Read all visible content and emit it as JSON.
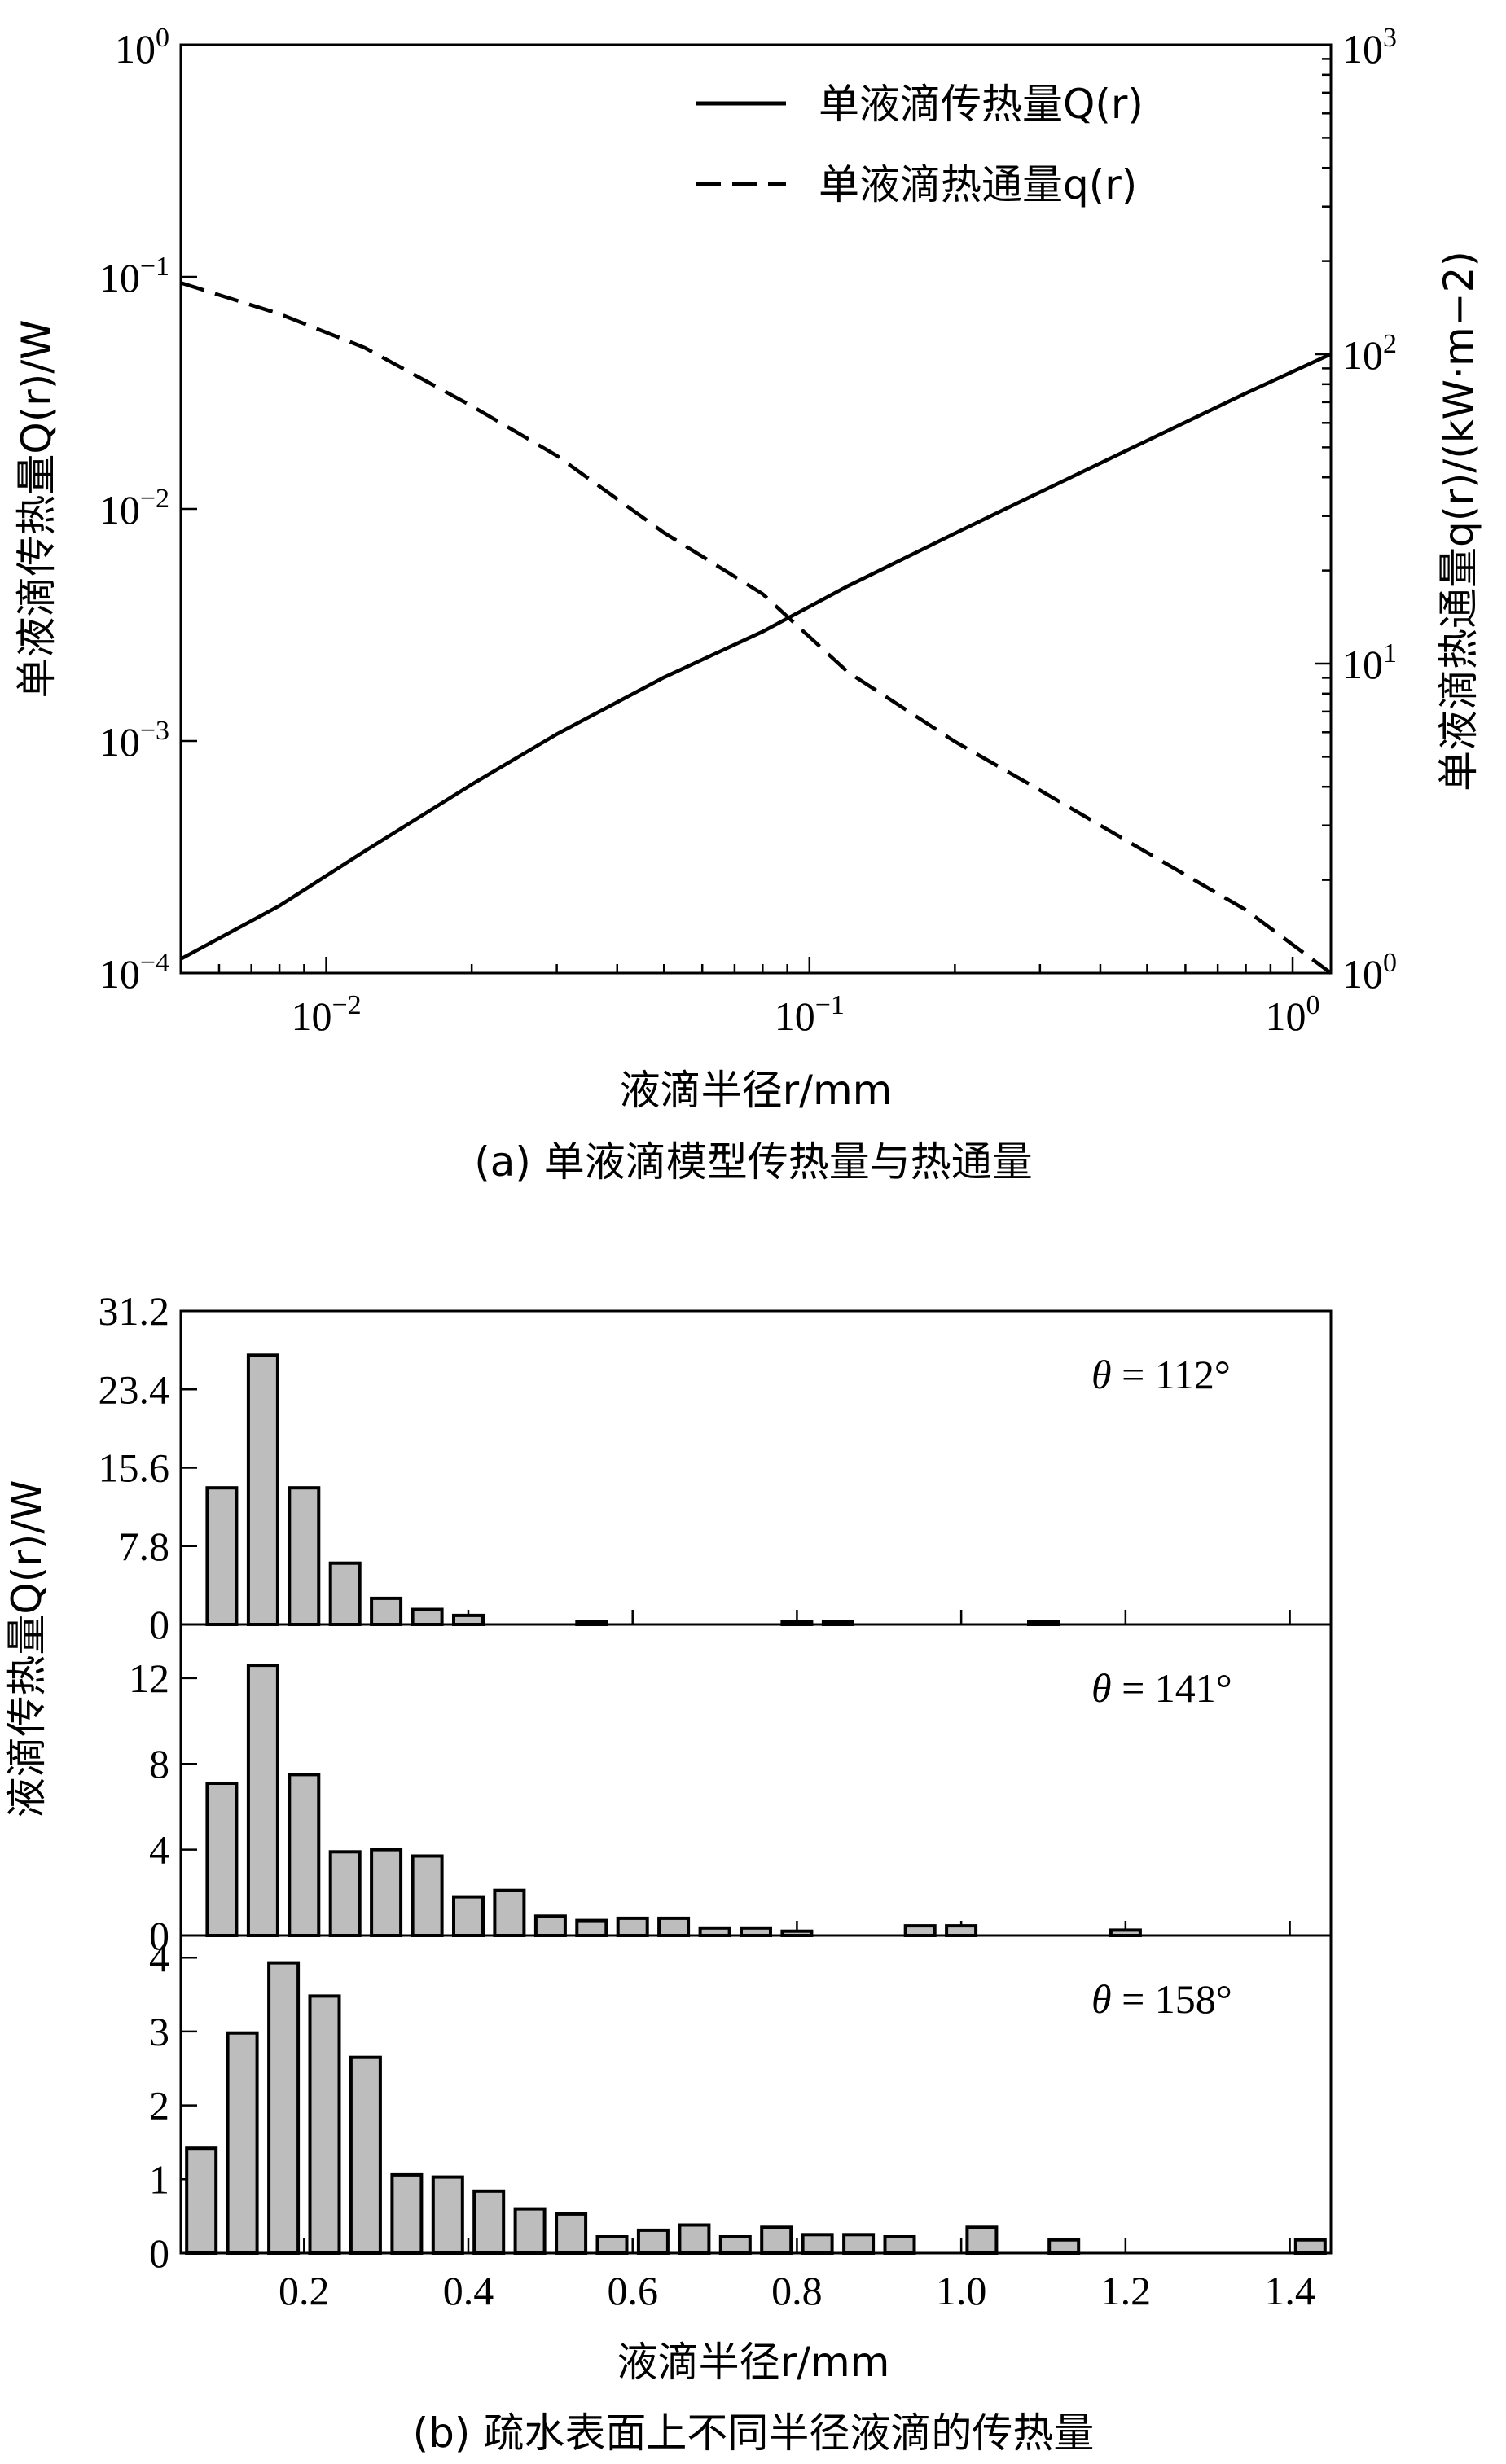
{
  "chart_data": [
    {
      "type": "line",
      "caption": "(a) 单液滴模型传热量与热通量",
      "xlabel": "液滴半径r/mm",
      "xscale": "log",
      "xlim": [
        0.005,
        1.2
      ],
      "x_ticks": [
        {
          "base": "10",
          "exp": "−2"
        },
        {
          "base": "10",
          "exp": "−1"
        },
        {
          "base": "10",
          "exp": "0"
        }
      ],
      "y_left": {
        "label": "单液滴传热量Q(r)/W",
        "scale": "log",
        "lim": [
          0.0001,
          1
        ],
        "ticks": [
          {
            "base": "10",
            "exp": "0"
          },
          {
            "base": "10",
            "exp": "−1"
          },
          {
            "base": "10",
            "exp": "−2"
          },
          {
            "base": "10",
            "exp": "−3"
          },
          {
            "base": "10",
            "exp": "−4"
          }
        ]
      },
      "y_right": {
        "label": "单液滴热通量q(r)/(kW·m−2)",
        "scale": "log",
        "lim": [
          1,
          1000
        ],
        "ticks": [
          {
            "base": "10",
            "exp": "3"
          },
          {
            "base": "10",
            "exp": "2"
          },
          {
            "base": "10",
            "exp": "1"
          },
          {
            "base": "10",
            "exp": "0"
          }
        ]
      },
      "legend_position": "top-right",
      "series": [
        {
          "name": "单液滴传热量Q(r)",
          "axis": "left",
          "style": "solid",
          "x": [
            0.005,
            0.008,
            0.012,
            0.02,
            0.03,
            0.05,
            0.08,
            0.12,
            0.2,
            0.3,
            0.5,
            0.8,
            1.2
          ],
          "y": [
            0.000115,
            0.000195,
            0.000335,
            0.00065,
            0.00107,
            0.00188,
            0.00296,
            0.00465,
            0.00785,
            0.0118,
            0.0197,
            0.0315,
            0.0465
          ]
        },
        {
          "name": "单液滴热通量q(r)",
          "axis": "right",
          "style": "dashed",
          "x": [
            0.005,
            0.008,
            0.012,
            0.02,
            0.03,
            0.05,
            0.08,
            0.12,
            0.2,
            0.3,
            0.5,
            0.8,
            1.2
          ],
          "y": [
            170,
            135,
            105,
            68,
            47,
            26.5,
            16.8,
            9.4,
            5.6,
            3.9,
            2.45,
            1.6,
            1.0
          ]
        }
      ]
    },
    {
      "type": "bar",
      "caption": "(b) 疏水表面上不同半径液滴的传热量",
      "xlabel": "液滴半径r/mm",
      "ylabel": "液滴传热量Q(r)/W",
      "xlim": [
        0.05,
        1.45
      ],
      "x_ticks": [
        "0.2",
        "0.4",
        "0.6",
        "0.8",
        "1.0",
        "1.2",
        "1.4"
      ],
      "bar_color": "#bdbdbd",
      "panels": [
        {
          "annotation": {
            "symbol": "θ",
            "text": " = 112°"
          },
          "ylim": [
            0,
            31.2
          ],
          "y_ticks": [
            "31.2",
            "23.4",
            "15.6",
            "7.8",
            "0"
          ],
          "x": [
            0.1,
            0.15,
            0.2,
            0.25,
            0.3,
            0.35,
            0.4,
            0.55,
            0.8,
            0.85,
            1.1
          ],
          "values": [
            13.6,
            26.8,
            13.6,
            6.1,
            2.6,
            1.5,
            0.9,
            0.25,
            0.25,
            0.25,
            0.25
          ]
        },
        {
          "annotation": {
            "symbol": "θ",
            "text": " = 141°"
          },
          "ylim": [
            0,
            14.5
          ],
          "y_ticks": [
            "12",
            "8",
            "4",
            "0"
          ],
          "x": [
            0.1,
            0.15,
            0.2,
            0.25,
            0.3,
            0.35,
            0.4,
            0.45,
            0.5,
            0.55,
            0.6,
            0.65,
            0.7,
            0.75,
            0.8,
            0.95,
            1.0,
            1.2
          ],
          "values": [
            7.1,
            12.6,
            7.5,
            3.9,
            4.0,
            3.7,
            1.8,
            2.1,
            0.9,
            0.7,
            0.8,
            0.8,
            0.35,
            0.35,
            0.2,
            0.45,
            0.45,
            0.25
          ]
        },
        {
          "annotation": {
            "symbol": "θ",
            "text": " = 158°"
          },
          "ylim": [
            0,
            4.3
          ],
          "y_ticks": [
            "4",
            "3",
            "2",
            "1",
            "0"
          ],
          "x": [
            0.075,
            0.125,
            0.175,
            0.225,
            0.275,
            0.325,
            0.375,
            0.425,
            0.475,
            0.525,
            0.575,
            0.625,
            0.675,
            0.725,
            0.775,
            0.825,
            0.875,
            0.925,
            1.025,
            1.125,
            1.425
          ],
          "values": [
            1.42,
            2.98,
            3.93,
            3.48,
            2.65,
            1.06,
            1.03,
            0.84,
            0.6,
            0.53,
            0.22,
            0.31,
            0.38,
            0.22,
            0.35,
            0.25,
            0.25,
            0.22,
            0.35,
            0.18,
            0.18
          ]
        }
      ]
    }
  ]
}
